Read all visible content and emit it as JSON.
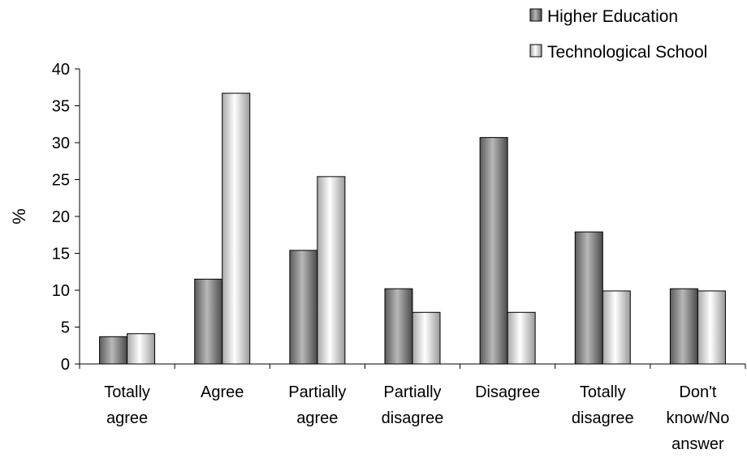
{
  "chart_data": {
    "type": "bar",
    "categories": [
      [
        "Totally",
        "agree"
      ],
      [
        "Agree"
      ],
      [
        "Partially",
        "agree"
      ],
      [
        "Partially",
        "disagree"
      ],
      [
        "Disagree"
      ],
      [
        "Totally",
        "disagree"
      ],
      [
        "Don't",
        "know/No",
        "answer"
      ]
    ],
    "series": [
      {
        "name": "Higher Education",
        "values": [
          3.7,
          11.5,
          15.4,
          10.2,
          30.7,
          17.9,
          10.2
        ]
      },
      {
        "name": "Technological School",
        "values": [
          4.1,
          36.7,
          25.4,
          7.0,
          7.0,
          9.9,
          9.9
        ]
      }
    ],
    "ylabel": "%",
    "ylim": [
      0,
      40
    ],
    "yticks": [
      0,
      5,
      10,
      15,
      20,
      25,
      30,
      35,
      40
    ],
    "grid": false,
    "legend_position": "top-right",
    "colors": {
      "series1": "#8a8a8a",
      "series2": "#e6e6e6",
      "axis": "#000000"
    }
  }
}
